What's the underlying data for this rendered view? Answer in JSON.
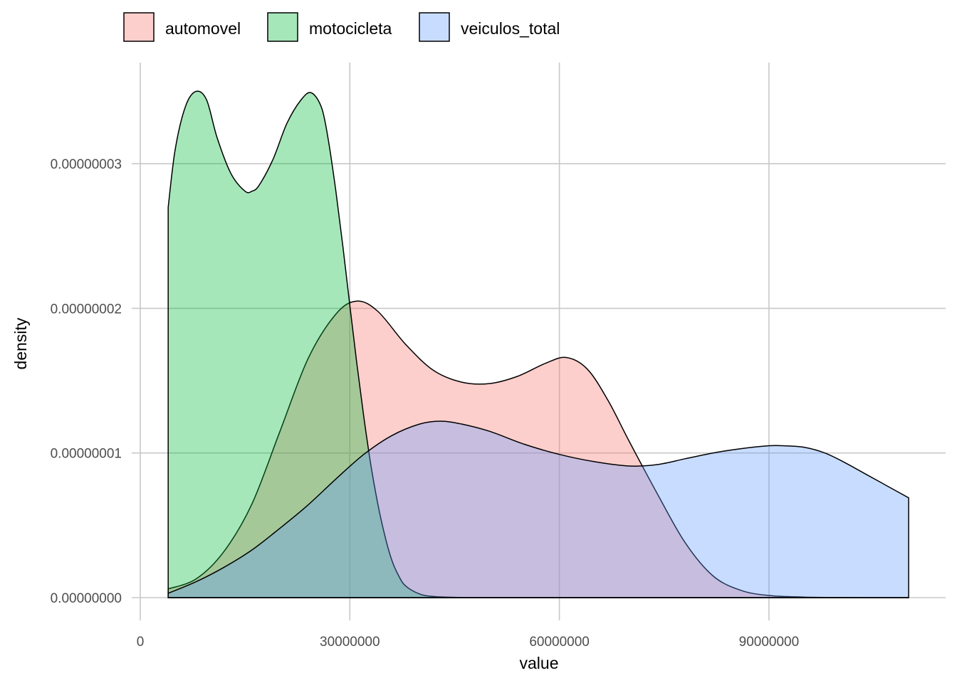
{
  "chart_data": {
    "type": "area",
    "subtype": "density",
    "xlabel": "value",
    "ylabel": "density",
    "xlim": [
      0,
      110000000
    ],
    "ylim": [
      0,
      3.5e-08
    ],
    "x_ticks": [
      0,
      30000000,
      60000000,
      90000000
    ],
    "x_tick_labels": [
      "0",
      "30000000",
      "60000000",
      "90000000"
    ],
    "y_ticks": [
      0,
      1e-08,
      2e-08,
      3e-08
    ],
    "y_tick_labels": [
      "0.00000000",
      "0.00000001",
      "0.00000002",
      "0.00000003"
    ],
    "grid": true,
    "legend_position": "top",
    "series": [
      {
        "name": "automovel",
        "color": "#F8766D",
        "x": [
          4000000,
          8000000,
          12000000,
          16000000,
          20000000,
          24000000,
          28000000,
          31000000,
          34000000,
          38000000,
          42000000,
          46000000,
          50000000,
          54000000,
          58000000,
          61000000,
          64000000,
          67000000,
          70000000,
          74000000,
          78000000,
          82000000,
          86000000,
          90000000,
          95000000,
          100000000,
          105000000,
          110000000
        ],
        "y": [
          6e-10,
          1.3e-09,
          3.2e-09,
          6.5e-09,
          1.15e-08,
          1.65e-08,
          1.96e-08,
          2.05e-08,
          1.98e-08,
          1.75e-08,
          1.57e-08,
          1.49e-08,
          1.48e-08,
          1.53e-08,
          1.62e-08,
          1.66e-08,
          1.58e-08,
          1.36e-08,
          1.08e-08,
          7.2e-09,
          3.8e-09,
          1.5e-09,
          5e-10,
          1.5e-10,
          4e-11,
          1e-11,
          0.0,
          0.0
        ]
      },
      {
        "name": "motocicleta",
        "color": "#00BA38",
        "x": [
          4000000,
          5000000,
          6500000,
          8000000,
          9500000,
          11000000,
          13000000,
          15000000,
          16000000,
          17000000,
          19000000,
          21000000,
          23000000,
          24500000,
          26000000,
          27000000,
          28000000,
          29000000,
          30000000,
          31000000,
          32000000,
          33000000,
          34000000,
          35000000,
          36000000,
          37000000,
          38000000,
          40000000,
          42000000,
          45000000,
          50000000,
          60000000,
          80000000,
          110000000
        ],
        "y": [
          2.7e-08,
          3.1e-08,
          3.4e-08,
          3.5e-08,
          3.44e-08,
          3.18e-08,
          2.93e-08,
          2.81e-08,
          2.81e-08,
          2.85e-08,
          3.03e-08,
          3.28e-08,
          3.44e-08,
          3.49e-08,
          3.38e-08,
          3.14e-08,
          2.81e-08,
          2.43e-08,
          2.02e-08,
          1.62e-08,
          1.25e-08,
          9.2e-09,
          6.5e-09,
          4.3e-09,
          2.6e-09,
          1.5e-09,
          8e-10,
          2.5e-10,
          8e-11,
          2e-11,
          0.0,
          0.0,
          0.0,
          0.0
        ]
      },
      {
        "name": "veiculos_total",
        "color": "#619CFF",
        "x": [
          4000000,
          8000000,
          12000000,
          16000000,
          20000000,
          24000000,
          28000000,
          32000000,
          36000000,
          40000000,
          43000000,
          46000000,
          50000000,
          55000000,
          60000000,
          65000000,
          70000000,
          74000000,
          78000000,
          82000000,
          86000000,
          90000000,
          92000000,
          95000000,
          98000000,
          101000000,
          104000000,
          107000000,
          110000000
        ],
        "y": [
          3e-10,
          1.1e-09,
          2.1e-09,
          3.3e-09,
          4.8e-09,
          6.4e-09,
          8.2e-09,
          9.9e-09,
          1.12e-08,
          1.2e-08,
          1.22e-08,
          1.2e-08,
          1.15e-08,
          1.06e-08,
          9.9e-09,
          9.4e-09,
          9.1e-09,
          9.2e-09,
          9.6e-09,
          1e-08,
          1.03e-08,
          1.05e-08,
          1.05e-08,
          1.04e-08,
          1e-08,
          9.3e-09,
          8.5e-09,
          7.7e-09,
          6.9e-09
        ]
      }
    ]
  }
}
